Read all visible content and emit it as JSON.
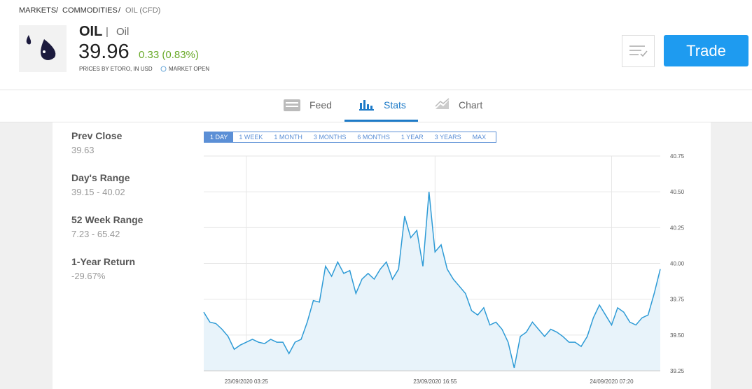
{
  "breadcrumb": {
    "items": [
      "MARKETS",
      "COMMODITIES",
      "OIL (CFD)"
    ],
    "separator": "/"
  },
  "header": {
    "symbol": "OIL",
    "divider": "|",
    "name": "Oil",
    "price": "39.96",
    "change": "0.33 (0.83%)",
    "price_note": "PRICES BY ETORO, IN USD",
    "market_status": "MARKET OPEN",
    "trade_button": "Trade"
  },
  "tabs": [
    "Feed",
    "Stats",
    "Chart"
  ],
  "stats": [
    {
      "label": "Prev Close",
      "value": "39.63"
    },
    {
      "label": "Day's Range",
      "value": "39.15 - 40.02"
    },
    {
      "label": "52 Week Range",
      "value": "7.23 - 65.42"
    },
    {
      "label": "1-Year Return",
      "value": "-29.67%"
    }
  ],
  "range_buttons": [
    "1 DAY",
    "1 WEEK",
    "1 MONTH",
    "3 MONTHS",
    "6 MONTHS",
    "1 YEAR",
    "3 YEARS",
    "MAX"
  ],
  "chart_data": {
    "type": "line",
    "categories": [
      null,
      null,
      null,
      null,
      null,
      null,
      null,
      "23/09/2020 03:25",
      null,
      null,
      null,
      null,
      null,
      null,
      null,
      null,
      null,
      null,
      null,
      null,
      null,
      null,
      null,
      null,
      null,
      null,
      null,
      null,
      null,
      null,
      null,
      null,
      null,
      null,
      null,
      null,
      null,
      null,
      "23/09/2020 16:55",
      null,
      null,
      null,
      null,
      null,
      null,
      null,
      null,
      null,
      null,
      null,
      null,
      null,
      null,
      null,
      null,
      null,
      null,
      null,
      null,
      null,
      null,
      null,
      null,
      null,
      null,
      null,
      null,
      "24/09/2020 07:20",
      null,
      null,
      null,
      null,
      null,
      null,
      null,
      null
    ],
    "series": [
      {
        "color": "#2e9bd6",
        "values": [
          39.66,
          39.59,
          39.58,
          39.54,
          39.49,
          39.4,
          39.43,
          39.45,
          39.47,
          39.45,
          39.44,
          39.47,
          39.45,
          39.45,
          39.37,
          39.45,
          39.47,
          39.59,
          39.74,
          39.73,
          39.98,
          39.91,
          40.01,
          39.93,
          39.95,
          39.79,
          39.89,
          39.93,
          39.89,
          39.96,
          40.01,
          39.89,
          39.96,
          40.33,
          40.18,
          40.23,
          39.98,
          40.5,
          40.08,
          40.13,
          39.96,
          39.89,
          39.84,
          39.79,
          39.67,
          39.64,
          39.69,
          39.57,
          39.59,
          39.54,
          39.45,
          39.27,
          39.49,
          39.52,
          39.59,
          39.54,
          39.49,
          39.54,
          39.52,
          39.49,
          39.45,
          39.45,
          39.42,
          39.49,
          39.62,
          39.71,
          39.64,
          39.57,
          39.69,
          39.66,
          39.59,
          39.57,
          39.62,
          39.64,
          39.79,
          39.96
        ]
      }
    ],
    "fill_color": "#e8f3fa",
    "ylim": [
      39.25,
      40.75
    ],
    "yticks": [
      39.25,
      {
        "value": 39.5,
        "label": "39.50"
      },
      39.75,
      {
        "value": 40,
        "label": "40.00"
      },
      40.25,
      {
        "value": 40.5,
        "label": "40.50"
      },
      40.75
    ],
    "grid": true
  }
}
